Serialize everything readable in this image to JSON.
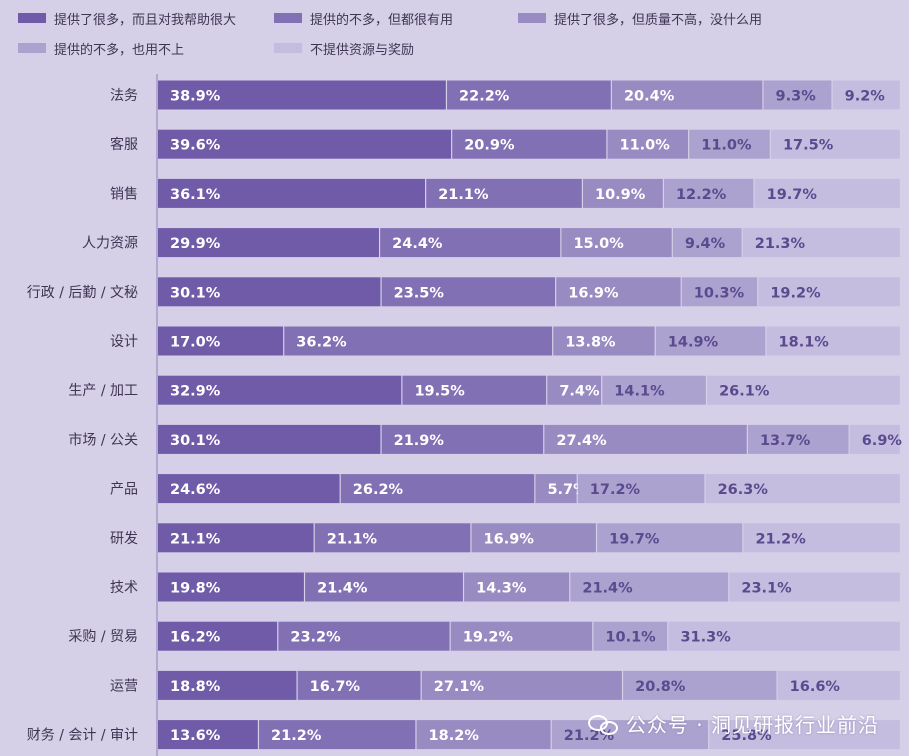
{
  "colors": {
    "background": "#d6cfe8",
    "series": [
      "#705ba8",
      "#8170b3",
      "#978bc1",
      "#aba2cf",
      "#c4bde0"
    ],
    "label_light": "#ffffff",
    "label_dark": "#5a4a8e",
    "category_text": "#3e3553"
  },
  "watermark": {
    "text": "公众号 · 洞见研报行业前沿",
    "icon": "wechat-logo-icon"
  },
  "chart_data": {
    "type": "bar",
    "orientation": "horizontal",
    "stacked": true,
    "title": "",
    "xlabel": "",
    "ylabel": "",
    "xlim": [
      0,
      100
    ],
    "grid": false,
    "legend_position": "top-left",
    "categories": [
      "法务",
      "客服",
      "销售",
      "人力资源",
      "行政 / 后勤 / 文秘",
      "设计",
      "生产 / 加工",
      "市场 / 公关",
      "产品",
      "研发",
      "技术",
      "采购 / 贸易",
      "运营",
      "财务 / 会计 / 审计"
    ],
    "series": [
      {
        "name": "提供了很多，而且对我帮助很大",
        "values": [
          38.9,
          39.6,
          36.1,
          29.9,
          30.1,
          17.0,
          32.9,
          30.1,
          24.6,
          21.1,
          19.8,
          16.2,
          18.8,
          13.6
        ]
      },
      {
        "name": "提供的不多，但都很有用",
        "values": [
          22.2,
          20.9,
          21.1,
          24.4,
          23.5,
          36.2,
          19.5,
          21.9,
          26.2,
          21.1,
          21.4,
          23.2,
          16.7,
          21.2
        ]
      },
      {
        "name": "提供了很多，但质量不高，没什么用",
        "values": [
          20.4,
          11.0,
          10.9,
          15.0,
          16.9,
          13.8,
          7.4,
          27.4,
          5.7,
          16.9,
          14.3,
          19.2,
          27.1,
          18.2
        ]
      },
      {
        "name": "提供的不多，也用不上",
        "values": [
          9.3,
          11.0,
          12.2,
          9.4,
          10.3,
          14.9,
          14.1,
          13.7,
          17.2,
          19.7,
          21.4,
          10.1,
          20.8,
          21.2
        ]
      },
      {
        "name": "不提供资源与奖励",
        "values": [
          9.2,
          17.5,
          19.7,
          21.3,
          19.2,
          18.1,
          26.1,
          6.9,
          26.3,
          21.2,
          23.1,
          31.3,
          16.6,
          25.8
        ]
      }
    ]
  }
}
